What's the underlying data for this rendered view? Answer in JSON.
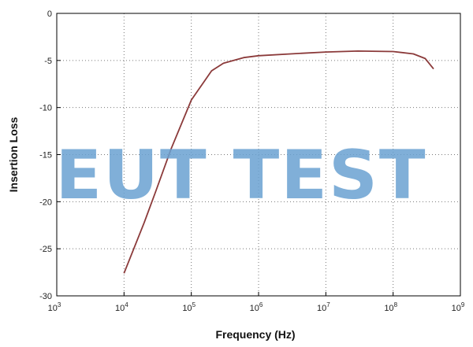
{
  "chart_data": {
    "type": "line",
    "xlabel": "Frequency (Hz)",
    "ylabel": "Insertion Loss",
    "x_scale": "log",
    "xlim": [
      1000,
      1000000000
    ],
    "ylim": [
      -30,
      0
    ],
    "grid": true,
    "x_ticks": [
      {
        "value": 1000,
        "base": "10",
        "exp": "3"
      },
      {
        "value": 10000,
        "base": "10",
        "exp": "4"
      },
      {
        "value": 100000,
        "base": "10",
        "exp": "5"
      },
      {
        "value": 1000000,
        "base": "10",
        "exp": "6"
      },
      {
        "value": 10000000,
        "base": "10",
        "exp": "7"
      },
      {
        "value": 100000000,
        "base": "10",
        "exp": "8"
      },
      {
        "value": 1000000000,
        "base": "10",
        "exp": "9"
      }
    ],
    "y_ticks": [
      0,
      -5,
      -10,
      -15,
      -20,
      -25,
      -30
    ],
    "series": [
      {
        "color": "#8b3a3a",
        "x": [
          10000,
          20000,
          30000,
          50000,
          100000,
          200000,
          300000,
          600000,
          1000000,
          3000000,
          10000000,
          30000000,
          100000000,
          200000000,
          300000000,
          400000000
        ],
        "y": [
          -27.6,
          -22.2,
          -18.8,
          -14.4,
          -9.2,
          -6.1,
          -5.3,
          -4.7,
          -4.5,
          -4.3,
          -4.1,
          -4.0,
          -4.05,
          -4.3,
          -4.8,
          -5.9
        ]
      }
    ]
  },
  "watermark": "EUT TEST"
}
